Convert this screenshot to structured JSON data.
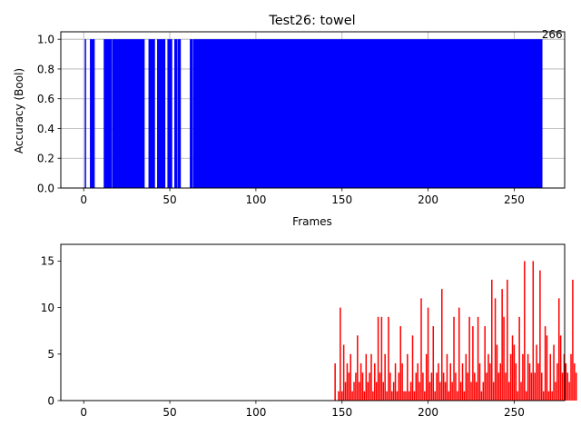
{
  "chart_data": [
    {
      "type": "bar",
      "title": "Test26: towel",
      "xlabel": "Frames",
      "ylabel": "Accuracy (Bool)",
      "xlim": [
        -13.3,
        279.3
      ],
      "ylim": [
        0,
        1.05
      ],
      "xticks": [
        0,
        50,
        100,
        150,
        200,
        250
      ],
      "yticks": [
        0.0,
        0.2,
        0.4,
        0.6,
        0.8,
        1.0
      ],
      "ytick_labels": [
        "0.0",
        "0.2",
        "0.4",
        "0.6",
        "0.8",
        "1.0"
      ],
      "grid": true,
      "color": "#0000ff",
      "annotation": {
        "text": "266",
        "x": 266,
        "y": 1.0
      },
      "true_frame_ranges": [
        [
          1,
          1
        ],
        [
          4,
          6
        ],
        [
          12,
          16
        ],
        [
          17,
          35
        ],
        [
          38,
          41
        ],
        [
          43,
          47
        ],
        [
          49,
          51
        ],
        [
          53,
          54
        ],
        [
          55,
          56
        ],
        [
          62,
          63
        ],
        [
          64,
          266
        ]
      ],
      "false_frames": [
        0,
        2,
        3,
        7,
        8,
        9,
        10,
        11,
        36,
        37,
        42,
        48,
        52,
        57,
        58,
        59,
        60,
        61
      ]
    },
    {
      "type": "bar",
      "title": "",
      "xlabel": "",
      "ylabel": "",
      "xlim": [
        -13.3,
        279.3
      ],
      "ylim": [
        0,
        16.8
      ],
      "xticks": [
        0,
        50,
        100,
        150,
        200,
        250
      ],
      "yticks": [
        0,
        5,
        10,
        15
      ],
      "grid": false,
      "color": "#ff0000",
      "x_start": 146,
      "values": [
        4,
        0,
        1,
        10,
        1,
        6,
        2,
        4,
        3,
        5,
        1,
        2,
        3,
        7,
        2,
        4,
        3,
        1,
        5,
        2,
        3,
        5,
        1,
        4,
        2,
        9,
        3,
        9,
        2,
        5,
        1,
        9,
        3,
        1,
        2,
        4,
        1,
        3,
        8,
        4,
        1,
        1,
        5,
        1,
        2,
        7,
        1,
        3,
        4,
        2,
        11,
        3,
        1,
        5,
        10,
        2,
        3,
        8,
        1,
        3,
        4,
        2,
        12,
        3,
        2,
        5,
        1,
        4,
        2,
        9,
        3,
        1,
        10,
        2,
        4,
        1,
        5,
        3,
        9,
        2,
        8,
        3,
        2,
        9,
        4,
        1,
        2,
        8,
        3,
        5,
        4,
        13,
        2,
        11,
        6,
        3,
        4,
        12,
        9,
        3,
        13,
        2,
        5,
        7,
        6,
        4,
        1,
        9,
        2,
        5,
        15,
        1,
        5,
        4,
        3,
        15,
        3,
        6,
        4,
        14,
        3,
        1,
        8,
        7,
        1,
        5,
        1,
        6,
        2,
        4,
        11,
        7,
        3,
        5,
        4,
        3,
        2,
        5,
        13,
        4,
        3
      ]
    }
  ]
}
